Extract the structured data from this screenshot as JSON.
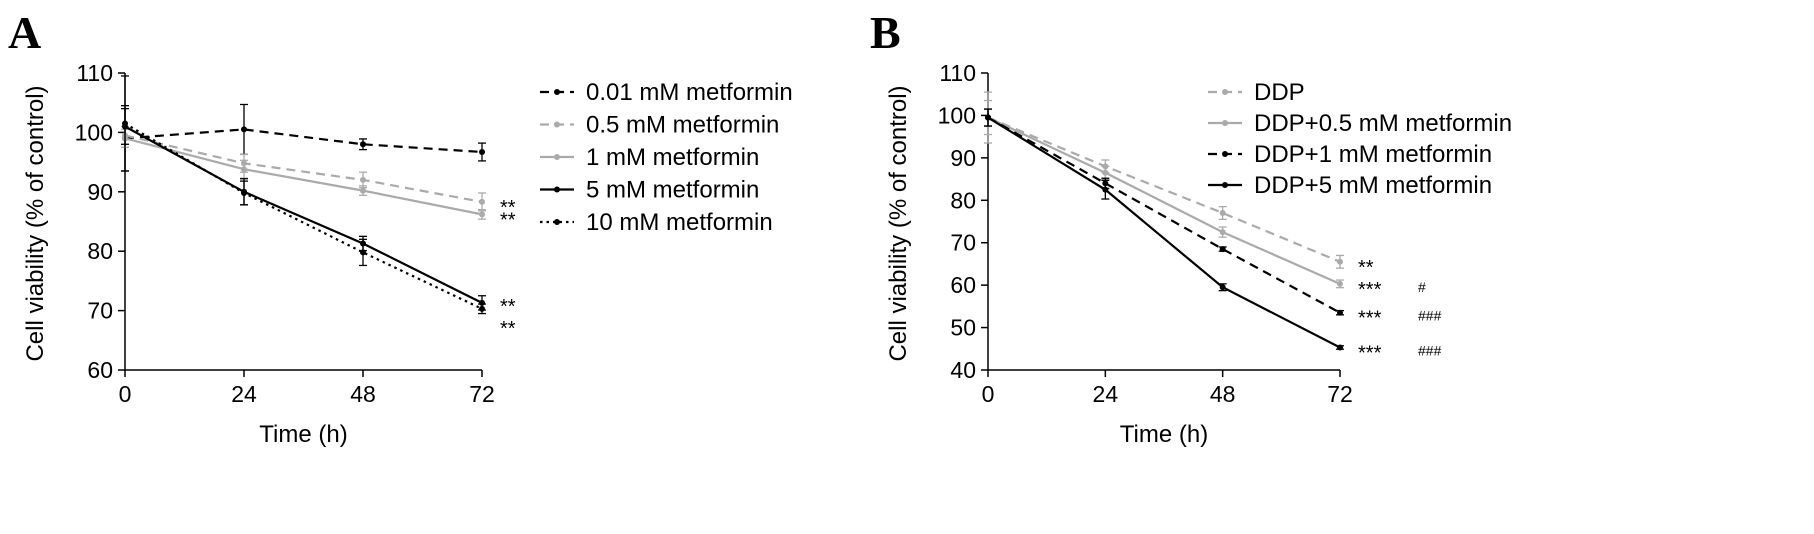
{
  "chart_data": [
    {
      "panel": "A",
      "type": "line",
      "xlabel": "Time (h)",
      "ylabel": "Cell viability (% of control)",
      "x": [
        0,
        24,
        48,
        72
      ],
      "xticks": [
        "0",
        "24",
        "48",
        "72"
      ],
      "ylim": [
        60,
        110
      ],
      "yticks": [
        "60",
        "70",
        "80",
        "90",
        "100",
        "110"
      ],
      "grid": false,
      "legend": "right",
      "series": [
        {
          "name": "0.01 mM metformin",
          "values": [
            99,
            100.5,
            98,
            96.7
          ],
          "errors": [
            5.5,
            4.2,
            0.9,
            1.5
          ],
          "color": "#000000",
          "dash": "dashed",
          "significance": ""
        },
        {
          "name": "0.5 mM metformin",
          "values": [
            99.5,
            94.8,
            92,
            88.3
          ],
          "errors": [
            1.5,
            1.5,
            1.3,
            1.5
          ],
          "color": "#aaaaaa",
          "dash": "dashed",
          "significance": "**"
        },
        {
          "name": "1 mM metformin",
          "values": [
            99,
            93.8,
            90.2,
            86.2
          ],
          "errors": [
            1.5,
            1.5,
            0.8,
            0.8
          ],
          "color": "#aaaaaa",
          "dash": "solid",
          "significance": "**"
        },
        {
          "name": "5 mM metformin",
          "values": [
            101,
            90,
            81.3,
            71.3
          ],
          "errors": [
            3,
            2.2,
            1.2,
            1.2
          ],
          "color": "#000000",
          "dash": "solid",
          "significance": "**"
        },
        {
          "name": "10 mM metformin",
          "values": [
            101.5,
            89.8,
            79.8,
            70.3
          ],
          "errors": [
            8,
            2,
            2.2,
            0.8
          ],
          "color": "#000000",
          "dash": "dotted",
          "significance": "**"
        }
      ]
    },
    {
      "panel": "B",
      "type": "line",
      "xlabel": "Time (h)",
      "ylabel": "Cell viability (% of control)",
      "x": [
        0,
        24,
        48,
        72
      ],
      "xticks": [
        "0",
        "24",
        "48",
        "72"
      ],
      "ylim": [
        40,
        110
      ],
      "yticks": [
        "40",
        "50",
        "60",
        "70",
        "80",
        "90",
        "100",
        "110"
      ],
      "grid": false,
      "legend": "top-right",
      "series": [
        {
          "name": "DDP",
          "values": [
            99.5,
            88,
            77,
            65.5
          ],
          "errors": [
            6,
            1.5,
            1.5,
            1.5
          ],
          "color": "#aaaaaa",
          "dash": "dashed",
          "significance": "**",
          "hash": ""
        },
        {
          "name": "DDP+0.5 mM metformin",
          "values": [
            99.5,
            86.5,
            72.5,
            60.3
          ],
          "errors": [
            4,
            1.5,
            1.2,
            0.9
          ],
          "color": "#aaaaaa",
          "dash": "solid",
          "significance": "***",
          "hash": "#"
        },
        {
          "name": "DDP+1 mM metformin",
          "values": [
            99.5,
            84,
            68.5,
            53.5
          ],
          "errors": [
            2,
            1.2,
            0.5,
            0.5
          ],
          "color": "#000000",
          "dash": "dashed",
          "significance": "***",
          "hash": "###"
        },
        {
          "name": "DDP+5 mM metformin",
          "values": [
            99.5,
            82.5,
            59.5,
            45.3
          ],
          "errors": [
            2,
            2.2,
            0.8,
            0.4
          ],
          "color": "#000000",
          "dash": "solid",
          "significance": "***",
          "hash": "###"
        }
      ]
    }
  ]
}
